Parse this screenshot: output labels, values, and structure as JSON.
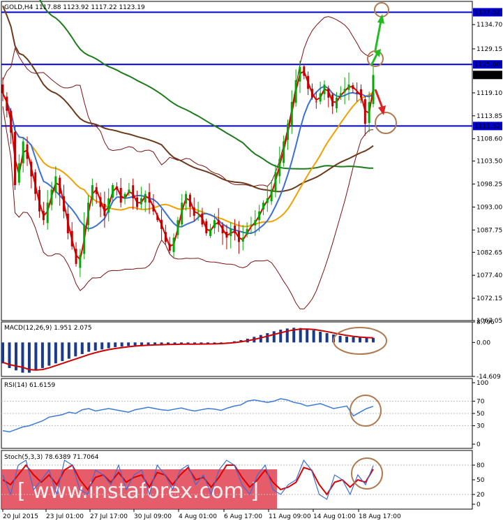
{
  "chart_data": [
    {
      "type": "candlestick",
      "name": "main-price",
      "header": "GOLD,H4  1117.88 1123.92 1117.22 1123.19",
      "ylim": [
        1067.05,
        1140.0
      ],
      "y_ticks": [
        "1134.70",
        "1129.15",
        "1119.10",
        "1113.85",
        "1108.60",
        "1103.50",
        "1098.25",
        "1093.00",
        "1087.75",
        "1082.65",
        "1077.40",
        "1072.15",
        "1067.05"
      ],
      "y_tick_values": [
        1134.7,
        1129.15,
        1119.1,
        1113.85,
        1108.6,
        1103.5,
        1098.25,
        1093.0,
        1087.75,
        1082.65,
        1077.4,
        1072.15,
        1067.05
      ],
      "levels": [
        {
          "value": 1137.52,
          "label": "1137.52"
        },
        {
          "value": 1125.6,
          "label": "1125.60"
        },
        {
          "value": 1111.52,
          "label": "1111.52"
        }
      ],
      "current_price_label": "1123.19",
      "current_price": 1123.19,
      "close_series": [
        1119,
        1115,
        1110,
        1098,
        1103,
        1108,
        1104,
        1100,
        1096,
        1092,
        1090,
        1094,
        1097,
        1100,
        1096,
        1092,
        1087,
        1084,
        1080,
        1082,
        1089,
        1094,
        1098,
        1096,
        1093,
        1091,
        1095,
        1098,
        1097,
        1094,
        1096,
        1097,
        1095,
        1093,
        1095,
        1096,
        1094,
        1092,
        1090,
        1088,
        1085,
        1083,
        1086,
        1090,
        1094,
        1096,
        1093,
        1091,
        1092,
        1089,
        1087,
        1088,
        1090,
        1089,
        1087,
        1086,
        1088,
        1087,
        1085,
        1086,
        1088,
        1089,
        1090,
        1092,
        1094,
        1095,
        1097,
        1101,
        1104,
        1108,
        1112,
        1117,
        1122,
        1125,
        1123,
        1120,
        1118,
        1117,
        1119,
        1121,
        1118,
        1116,
        1118,
        1119,
        1120,
        1121,
        1120,
        1119,
        1118,
        1112,
        1117,
        1123.19
      ],
      "series": [
        {
          "name": "ma-red"
        },
        {
          "name": "ma-blue"
        },
        {
          "name": "ma-orange"
        },
        {
          "name": "ma-green"
        },
        {
          "name": "ma-brown"
        },
        {
          "name": "bollinger"
        }
      ],
      "x_ticks": [
        "20 Jul 2015",
        "23 Jul 01:00",
        "27 Jul 17:00",
        "30 Jul 09:00",
        "4 Aug 01:00",
        "6 Aug 17:00",
        "11 Aug 09:00",
        "14 Aug 01:00",
        "18 Aug 17:00"
      ]
    },
    {
      "type": "bar",
      "name": "macd",
      "header": "MACD(12,26,9) 1.951 2.075",
      "ylim": [
        -14.609,
        8.796
      ],
      "y_ticks": [
        "8.796",
        "0.00",
        "-14.609"
      ],
      "values": [
        -9,
        -11,
        -12,
        -13,
        -13,
        -12,
        -11,
        -10,
        -9,
        -8,
        -7,
        -6,
        -5,
        -4,
        -3.5,
        -3,
        -2.5,
        -2,
        -1.8,
        -1.5,
        -1.3,
        -1.2,
        -1,
        -1,
        -0.9,
        -0.8,
        -0.8,
        -0.7,
        -0.7,
        -0.8,
        -0.7,
        -0.6,
        -0.5,
        -0.3,
        0,
        0.5,
        1,
        1.6,
        2.4,
        3.2,
        4,
        4.8,
        5.5,
        6,
        6.3,
        6.2,
        5.8,
        5.2,
        4.6,
        4,
        3.4,
        2.8,
        2.5,
        2.3,
        2.1,
        2,
        1.951
      ]
    },
    {
      "type": "line",
      "name": "rsi",
      "header": "RSI(14) 61.6159",
      "ylim": [
        0,
        100
      ],
      "y_ticks": [
        "100",
        "70",
        "50",
        "30",
        "0"
      ],
      "values": [
        22,
        20,
        24,
        28,
        30,
        34,
        38,
        44,
        46,
        48,
        52,
        50,
        56,
        58,
        54,
        56,
        58,
        56,
        54,
        52,
        56,
        58,
        60,
        58,
        56,
        55,
        57,
        59,
        56,
        54,
        56,
        58,
        57,
        55,
        59,
        62,
        64,
        70,
        72,
        70,
        68,
        70,
        74,
        72,
        68,
        66,
        62,
        64,
        66,
        62,
        58,
        60,
        62,
        46,
        52,
        58,
        61.6159
      ]
    },
    {
      "type": "line",
      "name": "stoch",
      "header": "Stoch(5,3,3) 78.6389 71.7064",
      "ylim": [
        0,
        100
      ],
      "y_ticks": [
        "80",
        "50",
        "20",
        "0"
      ],
      "main": [
        60,
        20,
        80,
        90,
        30,
        50,
        70,
        20,
        90,
        80,
        30,
        20,
        70,
        60,
        40,
        80,
        30,
        60,
        70,
        20,
        80,
        60,
        30,
        70,
        80,
        40,
        60,
        20,
        70,
        90,
        80,
        40,
        20,
        60,
        80,
        30,
        20,
        40,
        50,
        90,
        70,
        20,
        10,
        60,
        50,
        20,
        60,
        40,
        78.6389
      ],
      "signal": [
        50,
        40,
        60,
        80,
        60,
        45,
        60,
        40,
        70,
        80,
        50,
        30,
        55,
        60,
        45,
        65,
        45,
        55,
        60,
        35,
        65,
        60,
        40,
        60,
        75,
        50,
        55,
        35,
        55,
        80,
        80,
        55,
        35,
        50,
        70,
        45,
        30,
        35,
        45,
        75,
        70,
        40,
        20,
        45,
        50,
        35,
        50,
        45,
        71.7064
      ]
    }
  ],
  "watermark": "[ www.instaforex.com ]",
  "colors": {
    "candle_up": "#00aa00",
    "candle_down": "#c00000",
    "ma_red": "#e00000",
    "ma_blue": "#3a6fd8",
    "ma_orange": "#f0a000",
    "ma_green": "#1c7a1c",
    "ma_brown": "#6b3a1a",
    "bollinger": "#7a1010",
    "level_line": "#0000cc",
    "macd_bar": "#1a3a8a",
    "macd_signal": "#cc0000",
    "rsi": "#3a7ad8",
    "circle": "#b07a50",
    "arrow_green": "#22bb22",
    "arrow_red": "#dd2222",
    "watermark_bg": "#e04050"
  }
}
